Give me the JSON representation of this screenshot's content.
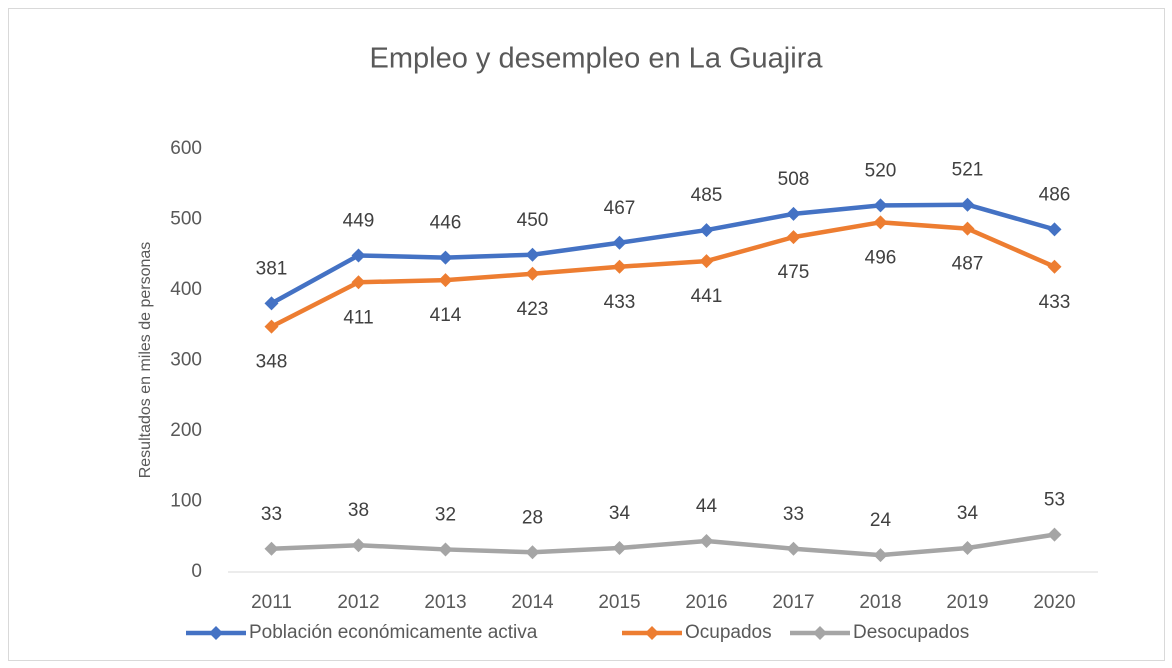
{
  "chart_data": {
    "type": "line",
    "title": "Empleo y desempleo en La Guajira",
    "y_label": "Resultados en miles de personas",
    "categories": [
      "2011",
      "2012",
      "2013",
      "2014",
      "2015",
      "2016",
      "2017",
      "2018",
      "2019",
      "2020"
    ],
    "series": [
      {
        "name": "Población económicamente activa",
        "color": "#4472c4",
        "values": [
          381,
          449,
          446,
          450,
          467,
          485,
          508,
          520,
          521,
          486
        ]
      },
      {
        "name": "Ocupados",
        "color": "#ed7d31",
        "values": [
          348,
          411,
          414,
          423,
          433,
          441,
          475,
          496,
          487,
          433
        ]
      },
      {
        "name": "Desocupados",
        "color": "#a5a5a5",
        "values": [
          33,
          38,
          32,
          28,
          34,
          44,
          33,
          24,
          34,
          53
        ]
      }
    ],
    "ylim": [
      0,
      600
    ],
    "yticks": [
      0,
      100,
      200,
      300,
      400,
      500,
      600
    ],
    "grid": false,
    "legend": "bottom"
  }
}
